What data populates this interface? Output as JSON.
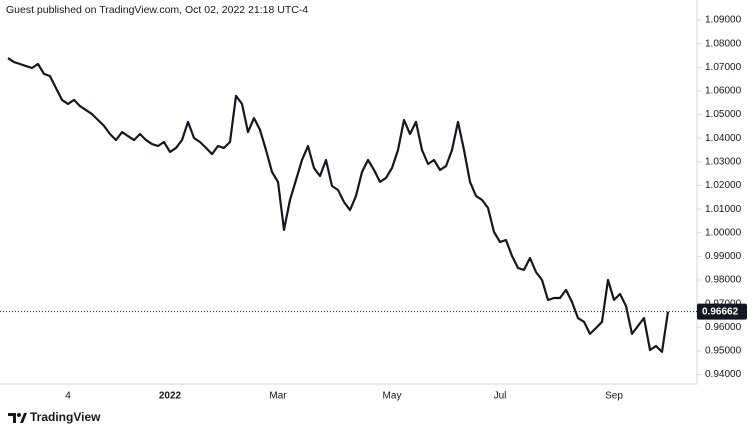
{
  "chart_data": {
    "type": "line",
    "title": "Guest published on TradingView.com, Oct 02, 2022 21:18 UTC-4",
    "footer": "TradingView",
    "categories": [
      null,
      null,
      null,
      null,
      null,
      null,
      null,
      null,
      null,
      null,
      "4",
      null,
      null,
      null,
      null,
      null,
      null,
      null,
      null,
      null,
      null,
      null,
      null,
      null,
      null,
      null,
      null,
      "2022",
      null,
      null,
      null,
      null,
      null,
      null,
      null,
      null,
      null,
      null,
      null,
      null,
      null,
      null,
      null,
      null,
      null,
      "Mar",
      null,
      null,
      null,
      null,
      null,
      null,
      null,
      null,
      null,
      null,
      null,
      null,
      null,
      null,
      null,
      null,
      null,
      null,
      "May",
      null,
      null,
      null,
      null,
      null,
      null,
      null,
      null,
      null,
      null,
      null,
      null,
      null,
      null,
      null,
      null,
      null,
      "Jul",
      null,
      null,
      null,
      null,
      null,
      null,
      null,
      null,
      null,
      null,
      null,
      null,
      null,
      null,
      null,
      null,
      null,
      null,
      "Sep",
      null,
      null,
      null,
      null,
      null,
      null,
      null,
      null,
      null
    ],
    "series": [
      {
        "color": "#131722",
        "values": [
          1.0739,
          1.0722,
          1.0714,
          1.0705,
          1.0697,
          1.0714,
          1.0672,
          1.0663,
          1.0612,
          1.0562,
          1.0545,
          1.0562,
          1.0536,
          1.0519,
          1.0502,
          1.0477,
          1.0452,
          1.0418,
          1.0392,
          1.0426,
          1.0409,
          1.0392,
          1.0418,
          1.0392,
          1.0375,
          1.0367,
          1.0384,
          1.0342,
          1.0359,
          1.0392,
          1.0469,
          1.0401,
          1.0384,
          1.0359,
          1.0333,
          1.0367,
          1.0359,
          1.0384,
          1.0579,
          1.0545,
          1.0426,
          1.0485,
          1.0435,
          1.035,
          1.0257,
          1.0215,
          1.0012,
          1.0139,
          1.0223,
          1.0308,
          1.0367,
          1.0274,
          1.024,
          1.0308,
          1.0198,
          1.0181,
          1.013,
          1.0096,
          1.0156,
          1.0257,
          1.0308,
          1.0266,
          1.0215,
          1.0232,
          1.0274,
          1.035,
          1.0477,
          1.0418,
          1.0469,
          1.035,
          1.0291,
          1.0308,
          1.0266,
          1.0282,
          1.035,
          1.0469,
          1.035,
          1.0215,
          1.0156,
          1.0139,
          1.0105,
          1.0003,
          0.9961,
          0.9969,
          0.9902,
          0.9851,
          0.9843,
          0.9893,
          0.9834,
          0.98,
          0.9716,
          0.9724,
          0.9724,
          0.9758,
          0.9707,
          0.9639,
          0.9623,
          0.9572,
          0.9597,
          0.9623,
          0.98,
          0.9716,
          0.9741,
          0.969,
          0.9572,
          0.9606,
          0.9639,
          0.9504,
          0.9521,
          0.9496,
          0.96662
        ]
      }
    ],
    "ylim": [
      0.936,
      1.0951
    ],
    "yticks": [
      {
        "value": 1.09,
        "label": "1.09000"
      },
      {
        "value": 1.08,
        "label": "1.08000"
      },
      {
        "value": 1.07,
        "label": "1.07000"
      },
      {
        "value": 1.06,
        "label": "1.06000"
      },
      {
        "value": 1.05,
        "label": "1.05000"
      },
      {
        "value": 1.04,
        "label": "1.04000"
      },
      {
        "value": 1.03,
        "label": "1.03000"
      },
      {
        "value": 1.02,
        "label": "1.02000"
      },
      {
        "value": 1.01,
        "label": "1.01000"
      },
      {
        "value": 1.0,
        "label": "1.00000"
      },
      {
        "value": 0.99,
        "label": "0.99000"
      },
      {
        "value": 0.98,
        "label": "0.98000"
      },
      {
        "value": 0.97,
        "label": "0.97000"
      },
      {
        "value": 0.96,
        "label": "0.96000"
      },
      {
        "value": 0.95,
        "label": "0.95000"
      },
      {
        "value": 0.94,
        "label": "0.94000"
      }
    ],
    "grid": false
  }
}
